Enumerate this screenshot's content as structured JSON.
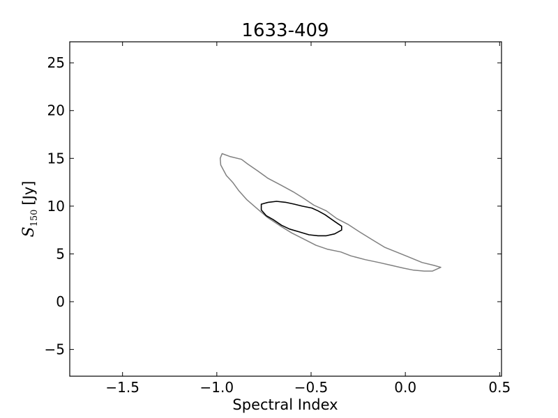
{
  "chart_data": {
    "type": "line",
    "title": "1633-409",
    "xlabel": "Spectral Index",
    "ylabel": {
      "symbol": "S",
      "subscript": "150",
      "unit": "[Jy]"
    },
    "xlim": [
      -1.78,
      0.51
    ],
    "ylim": [
      -7.8,
      27.2
    ],
    "xticks": [
      -1.5,
      -1.0,
      -0.5,
      0.0,
      0.5
    ],
    "xtick_labels": [
      "−1.5",
      "−1.0",
      "−0.5",
      "0.0",
      "0.5"
    ],
    "yticks": [
      -5,
      0,
      5,
      10,
      15,
      20,
      25
    ],
    "ytick_labels": [
      "−5",
      "0",
      "5",
      "10",
      "15",
      "20",
      "25"
    ],
    "grid": false,
    "series": [
      {
        "color": "#808080",
        "closed": true,
        "x": [
          -0.972,
          -0.931,
          -0.869,
          -0.836,
          -0.784,
          -0.728,
          -0.66,
          -0.595,
          -0.538,
          -0.485,
          -0.419,
          -0.364,
          -0.305,
          -0.243,
          -0.177,
          -0.11,
          -0.048,
          0.015,
          0.089,
          0.151,
          0.188,
          0.144,
          0.1,
          0.044,
          -0.008,
          -0.074,
          -0.14,
          -0.213,
          -0.29,
          -0.342,
          -0.415,
          -0.474,
          -0.533,
          -0.603,
          -0.669,
          -0.731,
          -0.79,
          -0.842,
          -0.883,
          -0.916,
          -0.949,
          -0.979,
          -0.982
        ],
        "y": [
          15.5,
          15.2,
          14.9,
          14.4,
          13.7,
          12.9,
          12.2,
          11.5,
          10.8,
          10.1,
          9.5,
          8.7,
          8.1,
          7.3,
          6.5,
          5.7,
          5.2,
          4.7,
          4.1,
          3.8,
          3.6,
          3.2,
          3.2,
          3.3,
          3.5,
          3.8,
          4.1,
          4.4,
          4.8,
          5.2,
          5.5,
          5.9,
          6.5,
          7.2,
          8.0,
          8.8,
          9.8,
          10.7,
          11.6,
          12.5,
          13.2,
          14.3,
          15.0
        ]
      },
      {
        "color": "#000000",
        "closed": true,
        "x": [
          -0.764,
          -0.727,
          -0.683,
          -0.635,
          -0.588,
          -0.547,
          -0.496,
          -0.463,
          -0.426,
          -0.397,
          -0.368,
          -0.338,
          -0.338,
          -0.375,
          -0.419,
          -0.463,
          -0.511,
          -0.562,
          -0.614,
          -0.657,
          -0.702,
          -0.738,
          -0.764,
          -0.764
        ],
        "y": [
          10.2,
          10.4,
          10.5,
          10.4,
          10.2,
          10.0,
          9.8,
          9.5,
          9.1,
          8.7,
          8.3,
          7.9,
          7.5,
          7.1,
          6.9,
          6.9,
          7.0,
          7.3,
          7.6,
          8.0,
          8.6,
          9.0,
          9.6,
          10.0
        ]
      }
    ]
  }
}
